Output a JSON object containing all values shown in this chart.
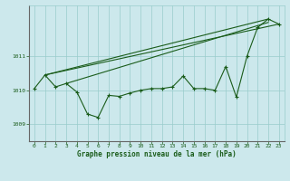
{
  "title": "Graphe pression niveau de la mer (hPa)",
  "background_color": "#cce8ec",
  "grid_color": "#99cccc",
  "line_color": "#1a5c1a",
  "xlim": [
    -0.5,
    23.5
  ],
  "ylim": [
    1008.5,
    1012.5
  ],
  "yticks": [
    1009,
    1010,
    1011
  ],
  "xticks": [
    0,
    1,
    2,
    3,
    4,
    5,
    6,
    7,
    8,
    9,
    10,
    11,
    12,
    13,
    14,
    15,
    16,
    17,
    18,
    19,
    20,
    21,
    22,
    23
  ],
  "main_series_x": [
    0,
    1,
    2,
    3,
    4,
    5,
    6,
    7,
    8,
    9,
    10,
    11,
    12,
    13,
    14,
    15,
    16,
    17,
    18,
    19,
    20,
    21,
    22,
    23
  ],
  "main_series_y": [
    1010.05,
    1010.45,
    1010.1,
    1010.2,
    1009.95,
    1009.3,
    1009.2,
    1009.85,
    1009.82,
    1009.92,
    1010.0,
    1010.05,
    1010.05,
    1010.1,
    1010.42,
    1010.05,
    1010.05,
    1010.0,
    1010.7,
    1009.8,
    1011.0,
    1011.85,
    1012.1,
    1011.95
  ],
  "line1_x": [
    1,
    22
  ],
  "line1_y": [
    1010.45,
    1012.1
  ],
  "line2_x": [
    1,
    23
  ],
  "line2_y": [
    1010.45,
    1011.95
  ],
  "line3_x": [
    3,
    22
  ],
  "line3_y": [
    1010.2,
    1012.0
  ],
  "figsize": [
    3.2,
    2.0
  ],
  "dpi": 100
}
